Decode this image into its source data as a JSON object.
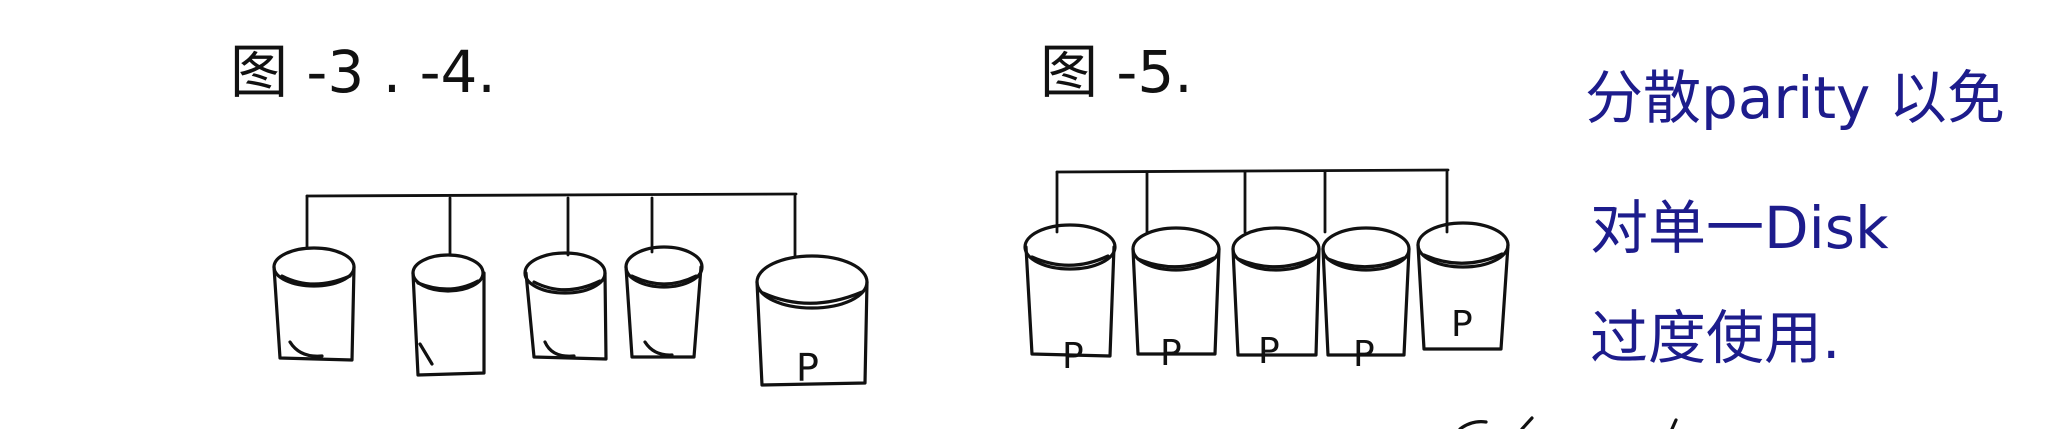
{
  "labels": {
    "fig_left": "图 -3 . -4.",
    "fig_right": "图 -5."
  },
  "note": {
    "line1": "分散parity 以免",
    "line2": "对单一Disk",
    "line3": "过度使用."
  },
  "disks": {
    "parity_mark": "P"
  },
  "colors": {
    "ink": "#111111",
    "note_ink": "#1d1c8c"
  }
}
